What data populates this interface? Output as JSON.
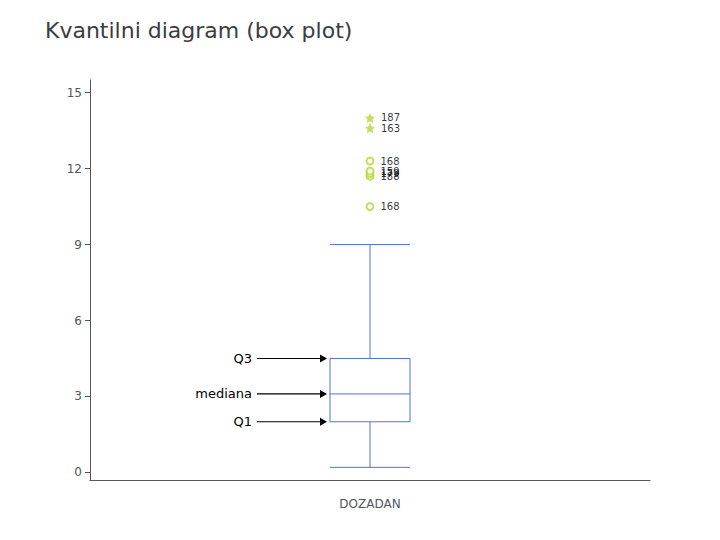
{
  "chart_data": {
    "type": "boxplot",
    "title": "Kvantilni diagram (box plot)",
    "xlabel": "DOZADAN",
    "ylim": [
      -0.3,
      15.5
    ],
    "yticks": [
      0,
      3,
      6,
      9,
      12,
      15
    ],
    "grid": false,
    "tick_labels": "y",
    "box": {
      "whisker_low": 0.2,
      "q1": 2.0,
      "median": 3.1,
      "q3": 4.5,
      "whisker_high": 9.0
    },
    "outliers": [
      {
        "marker": "circle",
        "values": [
          10.5,
          11.7,
          11.8,
          11.9,
          12.3
        ],
        "point_labels": [
          "168",
          "188",
          "179",
          "159",
          "168"
        ]
      },
      {
        "marker": "star",
        "values": [
          14.0,
          13.6
        ],
        "point_labels": [
          "187",
          "163"
        ]
      }
    ],
    "annotations": [
      {
        "text": "Q3",
        "y": 4.5
      },
      {
        "text": "mediana",
        "y": 3.1
      },
      {
        "text": "Q1",
        "y": 2.0
      }
    ]
  }
}
